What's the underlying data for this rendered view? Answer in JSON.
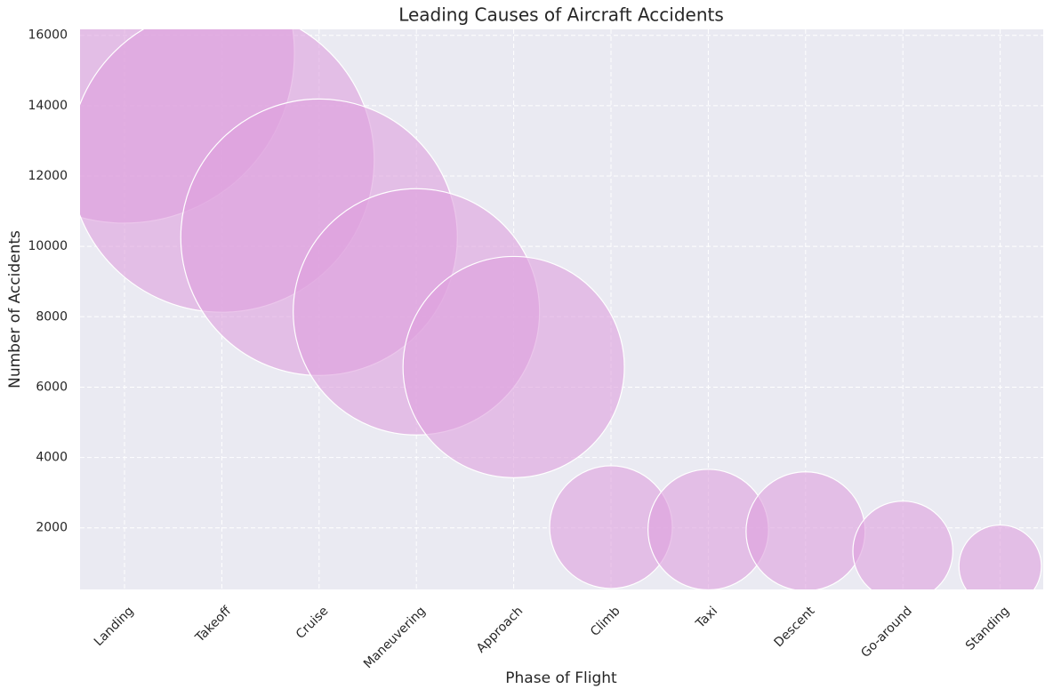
{
  "chart_data": {
    "type": "bubble",
    "title": "Leading Causes of Aircraft Accidents",
    "xlabel": "Phase of Flight",
    "ylabel": "Number of Accidents",
    "categories": [
      "Landing",
      "Takeoff",
      "Cruise",
      "Maneuvering",
      "Approach",
      "Climb",
      "Taxi",
      "Descent",
      "Go-around",
      "Standing"
    ],
    "values": [
      15490,
      12460,
      10260,
      8140,
      6570,
      2020,
      1950,
      1900,
      1340,
      910
    ],
    "sizes": [
      15490,
      12460,
      10260,
      8140,
      6570,
      2020,
      1950,
      1900,
      1340,
      910
    ],
    "color": "#dda0dd",
    "ylim": [
      250,
      16170
    ],
    "yticks": [
      2000,
      4000,
      6000,
      8000,
      10000,
      12000,
      14000,
      16000
    ],
    "grid": true
  }
}
